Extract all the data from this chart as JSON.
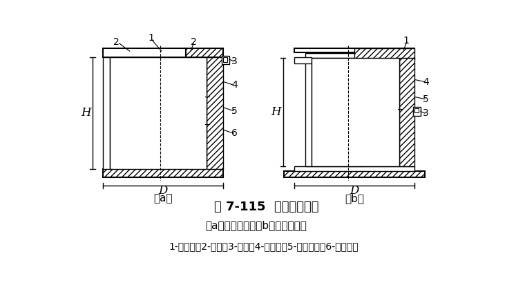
{
  "title": "图 7-115  锤击力传感器",
  "subtitle": "（a）用于帽上；（b）用于垫木上",
  "legend": "1-法兰盘；2-盖板；3-插座；4-电阻片；5-弹性元件；6-防水胶片",
  "bg_color": "#ffffff",
  "line_color": "#000000",
  "label_a": "（a）",
  "label_b": "（b）",
  "dim_D": "D",
  "dim_H": "H"
}
